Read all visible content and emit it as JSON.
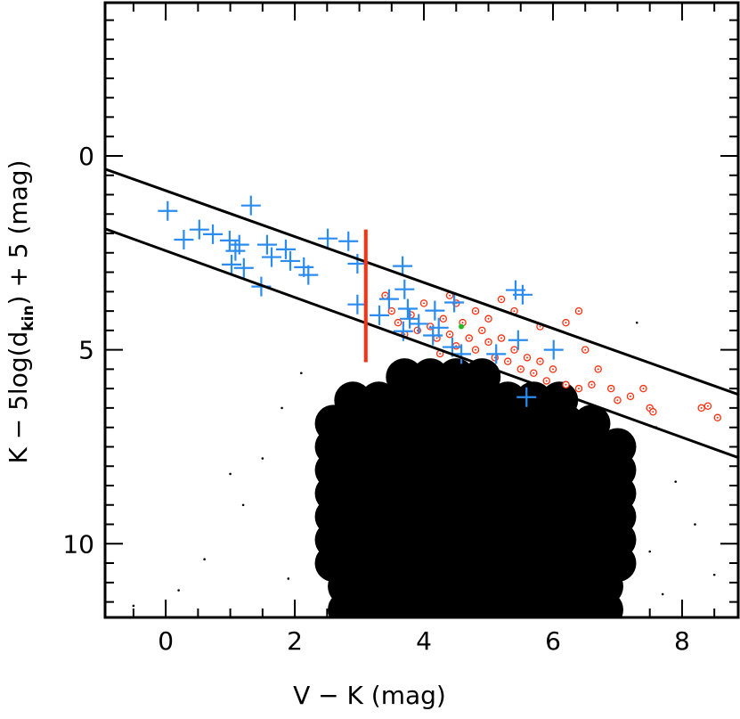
{
  "chart_data": {
    "type": "scatter",
    "xlabel": "V − K (mag)",
    "ylabel": [
      "K − 5log(d",
      "kin",
      ") + 5 (mag)"
    ],
    "xlim": [
      -0.94,
      8.87
    ],
    "ylim": [
      11.9,
      -3.95
    ],
    "xticks": [
      0,
      2,
      4,
      6,
      8
    ],
    "yticks": [
      0,
      5,
      10
    ],
    "xminorticks": [
      -0.5,
      0.5,
      1,
      1.5,
      2.5,
      3,
      3.5,
      4.5,
      5,
      5.5,
      6.5,
      7,
      7.5,
      8.5
    ],
    "yminorticks": [
      -3.5,
      -3,
      -2.5,
      -2,
      -1.5,
      -1,
      -0.5,
      0.5,
      1,
      1.5,
      2,
      2.5,
      3,
      3.5,
      4,
      4.5,
      5.5,
      6,
      6.5,
      7,
      7.5,
      8,
      8.5,
      9,
      9.5,
      10.5,
      11,
      11.5
    ],
    "lines": [
      {
        "color": "#000000",
        "x": [
          -0.94,
          8.87
        ],
        "values": [
          0.34,
          6.15
        ]
      },
      {
        "color": "#000000",
        "x": [
          -0.94,
          8.87
        ],
        "values": [
          1.88,
          7.78
        ]
      },
      {
        "color": "#ff3010",
        "x": [
          3.1,
          3.1
        ],
        "values": [
          1.9,
          5.32
        ]
      }
    ],
    "series": [
      {
        "color": "#000000",
        "marker": "dot",
        "marker_size": 21,
        "points": [
          [
            3.7,
            5.7
          ],
          [
            4.1,
            5.7
          ],
          [
            4.5,
            5.7
          ],
          [
            4.9,
            5.7
          ],
          [
            2.9,
            6.3
          ],
          [
            3.3,
            6.3
          ],
          [
            3.7,
            6.3
          ],
          [
            4.1,
            6.3
          ],
          [
            4.5,
            6.3
          ],
          [
            4.9,
            6.3
          ],
          [
            5.3,
            6.3
          ],
          [
            5.7,
            6.3
          ],
          [
            6.1,
            6.3
          ],
          [
            2.6,
            6.9
          ],
          [
            3.0,
            6.9
          ],
          [
            3.4,
            6.9
          ],
          [
            3.8,
            6.9
          ],
          [
            4.2,
            6.9
          ],
          [
            4.6,
            6.9
          ],
          [
            5.0,
            6.9
          ],
          [
            5.4,
            6.9
          ],
          [
            5.8,
            6.9
          ],
          [
            6.2,
            6.9
          ],
          [
            6.6,
            6.9
          ],
          [
            2.6,
            7.5
          ],
          [
            3.0,
            7.5
          ],
          [
            3.4,
            7.5
          ],
          [
            3.8,
            7.5
          ],
          [
            4.2,
            7.5
          ],
          [
            4.6,
            7.5
          ],
          [
            5.0,
            7.5
          ],
          [
            5.4,
            7.5
          ],
          [
            5.8,
            7.5
          ],
          [
            6.2,
            7.5
          ],
          [
            6.6,
            7.5
          ],
          [
            7.0,
            7.5
          ],
          [
            2.6,
            8.1
          ],
          [
            3.0,
            8.1
          ],
          [
            3.4,
            8.1
          ],
          [
            3.8,
            8.1
          ],
          [
            4.2,
            8.1
          ],
          [
            4.6,
            8.1
          ],
          [
            5.0,
            8.1
          ],
          [
            5.4,
            8.1
          ],
          [
            5.8,
            8.1
          ],
          [
            6.2,
            8.1
          ],
          [
            6.6,
            8.1
          ],
          [
            7.0,
            8.1
          ],
          [
            2.6,
            8.7
          ],
          [
            3.0,
            8.7
          ],
          [
            3.4,
            8.7
          ],
          [
            3.8,
            8.7
          ],
          [
            4.2,
            8.7
          ],
          [
            4.6,
            8.7
          ],
          [
            5.0,
            8.7
          ],
          [
            5.4,
            8.7
          ],
          [
            5.8,
            8.7
          ],
          [
            6.2,
            8.7
          ],
          [
            6.6,
            8.7
          ],
          [
            7.0,
            8.7
          ],
          [
            2.6,
            9.3
          ],
          [
            3.0,
            9.3
          ],
          [
            3.4,
            9.3
          ],
          [
            3.8,
            9.3
          ],
          [
            4.2,
            9.3
          ],
          [
            4.6,
            9.3
          ],
          [
            5.0,
            9.3
          ],
          [
            5.4,
            9.3
          ],
          [
            5.8,
            9.3
          ],
          [
            6.2,
            9.3
          ],
          [
            6.6,
            9.3
          ],
          [
            7.0,
            9.3
          ],
          [
            2.6,
            9.9
          ],
          [
            3.0,
            9.9
          ],
          [
            3.4,
            9.9
          ],
          [
            3.8,
            9.9
          ],
          [
            4.2,
            9.9
          ],
          [
            4.6,
            9.9
          ],
          [
            5.0,
            9.9
          ],
          [
            5.4,
            9.9
          ],
          [
            5.8,
            9.9
          ],
          [
            6.2,
            9.9
          ],
          [
            6.6,
            9.9
          ],
          [
            7.0,
            9.9
          ],
          [
            2.6,
            10.5
          ],
          [
            3.0,
            10.5
          ],
          [
            3.4,
            10.5
          ],
          [
            3.8,
            10.5
          ],
          [
            4.2,
            10.5
          ],
          [
            4.6,
            10.5
          ],
          [
            5.0,
            10.5
          ],
          [
            5.4,
            10.5
          ],
          [
            5.8,
            10.5
          ],
          [
            6.2,
            10.5
          ],
          [
            6.6,
            10.5
          ],
          [
            7.0,
            10.5
          ],
          [
            2.8,
            11.1
          ],
          [
            3.2,
            11.1
          ],
          [
            3.6,
            11.1
          ],
          [
            4.0,
            11.1
          ],
          [
            4.4,
            11.1
          ],
          [
            4.8,
            11.1
          ],
          [
            5.2,
            11.1
          ],
          [
            5.6,
            11.1
          ],
          [
            6.0,
            11.1
          ],
          [
            6.4,
            11.1
          ],
          [
            6.8,
            11.1
          ],
          [
            2.8,
            11.7
          ],
          [
            3.2,
            11.7
          ],
          [
            3.6,
            11.7
          ],
          [
            4.0,
            11.7
          ],
          [
            4.4,
            11.7
          ],
          [
            4.8,
            11.7
          ],
          [
            5.2,
            11.7
          ],
          [
            5.6,
            11.7
          ],
          [
            6.0,
            11.7
          ],
          [
            6.4,
            11.7
          ],
          [
            6.8,
            11.7
          ]
        ]
      },
      {
        "color": "#000000",
        "marker": "dot",
        "marker_size": 1.3,
        "points": [
          [
            1.8,
            6.5
          ],
          [
            1.5,
            7.8
          ],
          [
            1.2,
            9.0
          ],
          [
            0.6,
            10.4
          ],
          [
            0.2,
            11.2
          ],
          [
            1.9,
            10.9
          ],
          [
            7.6,
            7.0
          ],
          [
            7.9,
            8.4
          ],
          [
            7.5,
            10.2
          ],
          [
            8.2,
            9.5
          ],
          [
            7.7,
            11.3
          ],
          [
            2.1,
            5.6
          ],
          [
            6.8,
            6.6
          ],
          [
            8.5,
            10.8
          ],
          [
            -0.5,
            11.6
          ],
          [
            1.0,
            8.2
          ],
          [
            7.3,
            4.3
          ]
        ]
      },
      {
        "color": "#ff3010",
        "marker": "ring",
        "marker_size": 3.6,
        "points": [
          [
            3.4,
            3.6
          ],
          [
            3.5,
            4.0
          ],
          [
            3.6,
            4.3
          ],
          [
            3.8,
            4.1
          ],
          [
            3.9,
            4.5
          ],
          [
            4.0,
            3.8
          ],
          [
            4.1,
            4.4
          ],
          [
            4.2,
            4.7
          ],
          [
            4.3,
            4.2
          ],
          [
            4.4,
            4.6
          ],
          [
            4.5,
            4.9
          ],
          [
            4.6,
            4.3
          ],
          [
            4.7,
            4.7
          ],
          [
            4.8,
            5.0
          ],
          [
            4.9,
            4.5
          ],
          [
            5.0,
            4.8
          ],
          [
            5.1,
            5.2
          ],
          [
            5.2,
            4.7
          ],
          [
            5.3,
            5.3
          ],
          [
            5.4,
            5.0
          ],
          [
            5.5,
            5.5
          ],
          [
            5.6,
            5.2
          ],
          [
            5.7,
            5.6
          ],
          [
            5.8,
            5.3
          ],
          [
            5.9,
            5.8
          ],
          [
            6.0,
            5.5
          ],
          [
            6.2,
            5.9
          ],
          [
            6.4,
            6.0
          ],
          [
            6.6,
            5.9
          ],
          [
            6.9,
            6.0
          ],
          [
            7.2,
            6.2
          ],
          [
            7.4,
            6.0
          ],
          [
            7.5,
            6.5
          ],
          [
            7.55,
            6.6
          ],
          [
            8.3,
            6.5
          ],
          [
            8.4,
            6.45
          ],
          [
            8.55,
            6.75
          ],
          [
            4.4,
            3.6
          ],
          [
            4.5,
            3.8
          ],
          [
            5.0,
            4.2
          ],
          [
            5.4,
            4.0
          ],
          [
            5.8,
            4.4
          ],
          [
            6.2,
            4.3
          ],
          [
            6.4,
            4.0
          ],
          [
            5.2,
            3.7
          ],
          [
            4.8,
            4.0
          ],
          [
            6.5,
            5.0
          ],
          [
            6.7,
            5.5
          ],
          [
            7.0,
            6.3
          ],
          [
            4.25,
            5.1
          ],
          [
            3.7,
            4.6
          ]
        ]
      },
      {
        "color": "#22bb22",
        "marker": "dot",
        "marker_size": 3,
        "points": [
          [
            4.58,
            4.4
          ]
        ]
      },
      {
        "color": "#2a8cf0",
        "marker": "cross",
        "marker_size": 11,
        "points": [
          [
            0.03,
            1.42
          ],
          [
            0.28,
            2.16
          ],
          [
            0.52,
            1.9
          ],
          [
            0.73,
            2.02
          ],
          [
            0.99,
            2.18
          ],
          [
            1.08,
            2.45
          ],
          [
            1.14,
            2.29
          ],
          [
            1.02,
            2.8
          ],
          [
            1.21,
            2.89
          ],
          [
            1.32,
            1.28
          ],
          [
            1.48,
            3.37
          ],
          [
            1.57,
            2.29
          ],
          [
            1.64,
            2.61
          ],
          [
            1.86,
            2.41
          ],
          [
            1.93,
            2.71
          ],
          [
            2.14,
            2.87
          ],
          [
            2.21,
            3.07
          ],
          [
            2.51,
            2.13
          ],
          [
            2.83,
            2.2
          ],
          [
            2.97,
            2.78
          ],
          [
            2.97,
            3.83
          ],
          [
            3.31,
            4.11
          ],
          [
            3.46,
            3.69
          ],
          [
            3.67,
            2.84
          ],
          [
            3.7,
            3.44
          ],
          [
            3.75,
            3.94
          ],
          [
            3.78,
            4.2
          ],
          [
            3.68,
            4.52
          ],
          [
            3.92,
            4.33
          ],
          [
            4.17,
            3.99
          ],
          [
            4.14,
            4.63
          ],
          [
            4.23,
            4.43
          ],
          [
            4.47,
            3.78
          ],
          [
            4.44,
            4.93
          ],
          [
            4.58,
            5.11
          ],
          [
            5.12,
            5.11
          ],
          [
            5.42,
            3.46
          ],
          [
            5.53,
            3.58
          ],
          [
            5.46,
            4.75
          ],
          [
            5.59,
            6.22
          ],
          [
            6.01,
            5.0
          ]
        ]
      }
    ]
  }
}
